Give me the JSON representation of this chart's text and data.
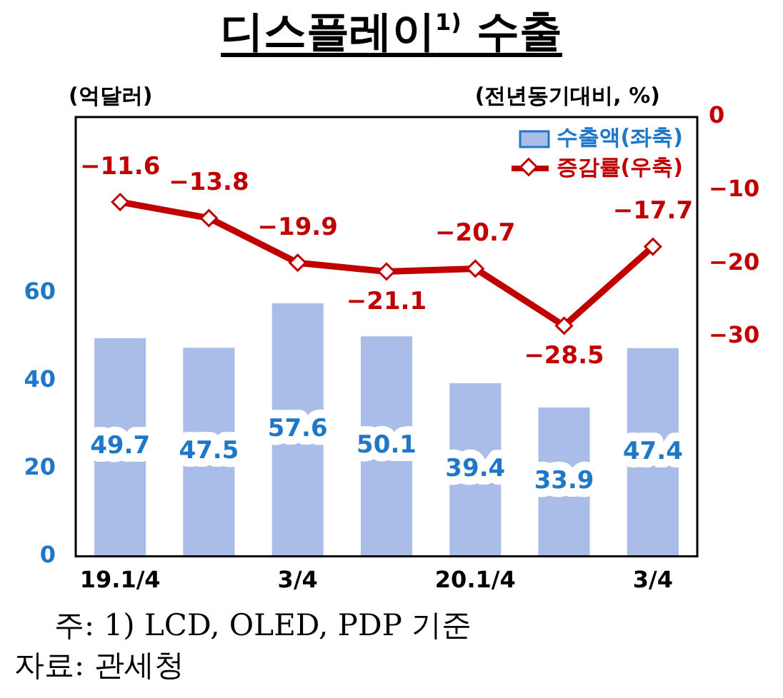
{
  "chart_data": {
    "type": "bar",
    "title": "디스플레이$^{1)}$ 수출",
    "ylabel": "(억달러)",
    "y2label": "(전년동기대비, %)",
    "categories": [
      "19.1/4",
      null,
      "3/4",
      null,
      "20.1/4",
      null,
      "3/4"
    ],
    "series": [
      {
        "name": "수출액(좌축)",
        "color": "#a9bde8",
        "values": [
          49.7,
          47.5,
          57.6,
          50.1,
          39.4,
          33.9,
          47.4
        ]
      },
      {
        "name": "증감률(우축)",
        "type": "line",
        "axis": "y2",
        "color": "#c00000",
        "marker": "diamond",
        "values": [
          -11.6,
          -13.8,
          -19.9,
          -21.1,
          -20.7,
          -28.5,
          -17.7
        ]
      }
    ],
    "ylim": [
      0,
      100
    ],
    "yticks": [
      0,
      20,
      40,
      60
    ],
    "y2lim": [
      -60,
      0
    ],
    "y2ticks": [
      0,
      -10,
      -20,
      -30
    ],
    "grid": false,
    "legend": "top right",
    "data_labels": true,
    "annotations": [
      "주: 1) LCD, OLED, PDP 기준",
      "자료: 관세청"
    ]
  }
}
